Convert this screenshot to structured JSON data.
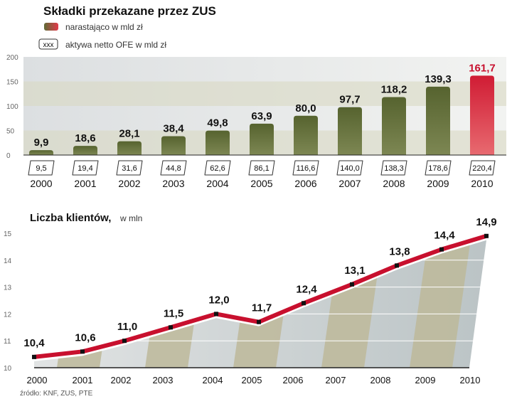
{
  "chart_data": [
    {
      "type": "bar",
      "title": "Składki przekazane przez ZUS",
      "legend": [
        {
          "label": "narastająco w mld zł",
          "colors": [
            "#5e6b36",
            "#e23a4a"
          ]
        },
        {
          "label": "aktywa netto OFE w mld zł",
          "box_text": "xxx"
        }
      ],
      "categories": [
        "2000",
        "2001",
        "2002",
        "2003",
        "2004",
        "2005",
        "2006",
        "2007",
        "2008",
        "2009",
        "2010"
      ],
      "values": [
        9.9,
        18.6,
        28.1,
        38.4,
        49.8,
        63.9,
        80.0,
        97.7,
        118.2,
        139.3,
        161.7
      ],
      "value_labels": [
        "9,9",
        "18,6",
        "28,1",
        "38,4",
        "49,8",
        "63,9",
        "80,0",
        "97,7",
        "118,2",
        "139,3",
        "161,7"
      ],
      "ofe_values": [
        9.5,
        19.4,
        31.6,
        44.8,
        62.6,
        86.1,
        116.6,
        140.0,
        138.3,
        178.6,
        220.4
      ],
      "ofe_labels": [
        "9,5",
        "19,4",
        "31,6",
        "44,8",
        "62,6",
        "86,1",
        "116,6",
        "140,0",
        "138,3",
        "178,6",
        "220,4"
      ],
      "ylim": [
        0,
        200
      ],
      "yticks": [
        "0",
        "50",
        "100",
        "150",
        "200"
      ],
      "colors": {
        "bar": "#5e6b36",
        "highlight": "#d42a3c",
        "highlight_label": "#c8102e"
      }
    },
    {
      "type": "line",
      "title": "Liczba klientów,",
      "unit": "w mln",
      "categories": [
        "2000",
        "2001",
        "2002",
        "2003",
        "2004",
        "2005",
        "2006",
        "2007",
        "2008",
        "2009",
        "2010"
      ],
      "values": [
        10.4,
        10.6,
        11.0,
        11.5,
        12.0,
        11.7,
        12.4,
        13.1,
        13.8,
        14.4,
        14.9
      ],
      "value_labels": [
        "10,4",
        "10,6",
        "11,0",
        "11,5",
        "12,0",
        "11,7",
        "12,4",
        "13,1",
        "13,8",
        "14,4",
        "14,9"
      ],
      "ylim": [
        10,
        15
      ],
      "yticks": [
        "10",
        "11",
        "12",
        "13",
        "14",
        "15"
      ],
      "colors": {
        "line": "#c8102e"
      }
    }
  ],
  "source": "źródło: KNF, ZUS, PTE"
}
